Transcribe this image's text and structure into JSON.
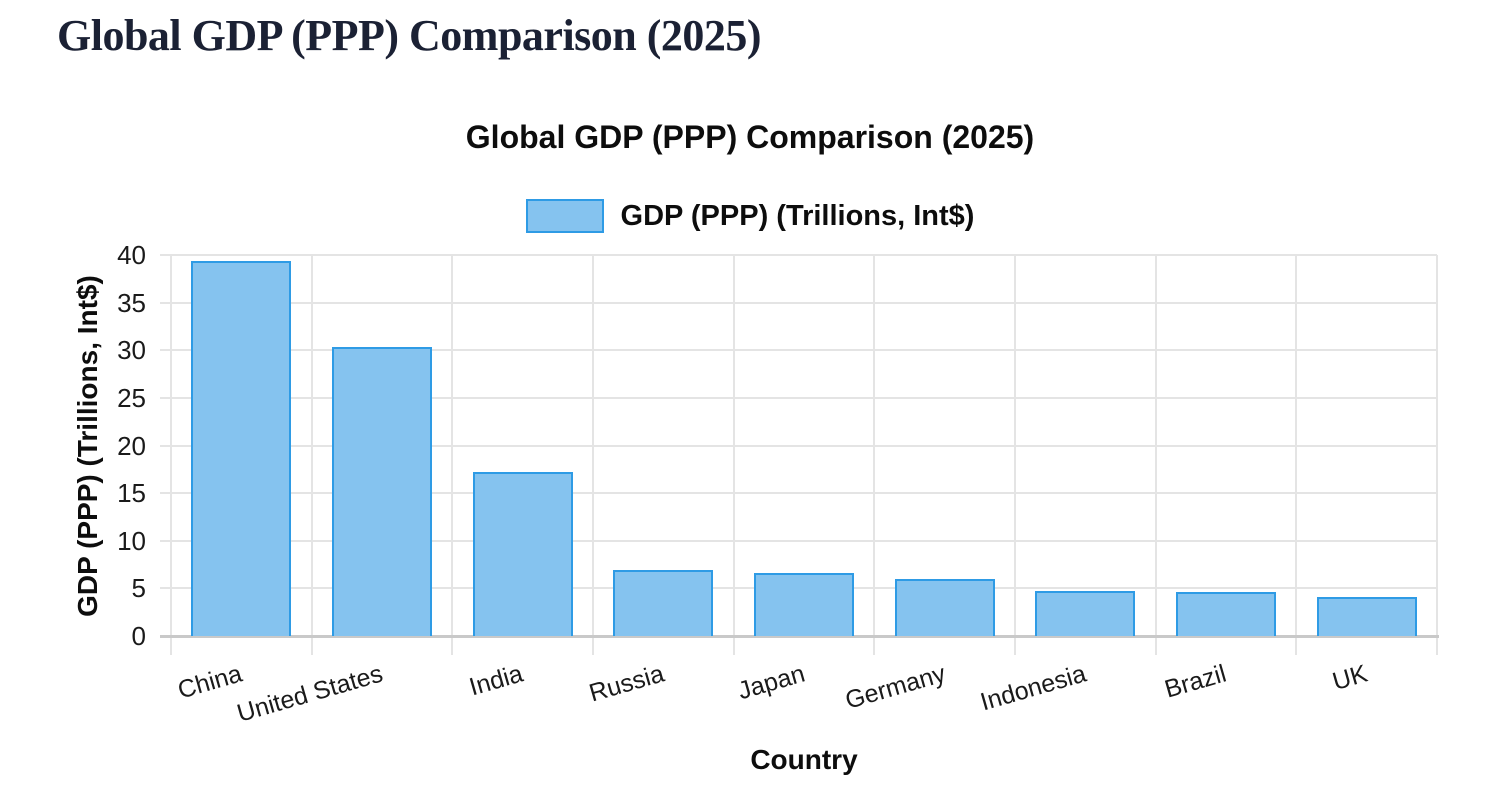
{
  "page": {
    "title": "Global GDP (PPP) Comparison (2025)"
  },
  "chart": {
    "title": "Global GDP (PPP) Comparison (2025)",
    "legend_label": "GDP (PPP) (Trillions, Int$)",
    "x_axis_label": "Country",
    "y_axis_label": "GDP (PPP) (Trillions, Int$)"
  },
  "chart_data": {
    "type": "bar",
    "title": "Global GDP (PPP) Comparison (2025)",
    "categories": [
      "China",
      "United States",
      "India",
      "Russia",
      "Japan",
      "Germany",
      "Indonesia",
      "Brazil",
      "UK"
    ],
    "series": [
      {
        "name": "GDP (PPP) (Trillions, Int$)",
        "values": [
          39.4,
          30.3,
          17.2,
          6.9,
          6.6,
          6.0,
          4.7,
          4.6,
          4.1
        ]
      }
    ],
    "xlabel": "Country",
    "ylabel": "GDP (PPP) (Trillions, Int$)",
    "ylim": [
      0,
      40
    ],
    "yticks": [
      0,
      5,
      10,
      15,
      20,
      25,
      30,
      35,
      40
    ],
    "grid": true,
    "legend_position": "top",
    "x_tick_rotation_deg": -16
  },
  "colors": {
    "bar_fill": "#85c3ef",
    "bar_border": "#2e9be5",
    "gridline": "#e4e4e4",
    "axis_line": "#c9c9c9",
    "chart_text": "#0d0d0d",
    "tick_text": "#1a1a1a",
    "page_title_text": "#1b2134",
    "background": "#ffffff"
  }
}
